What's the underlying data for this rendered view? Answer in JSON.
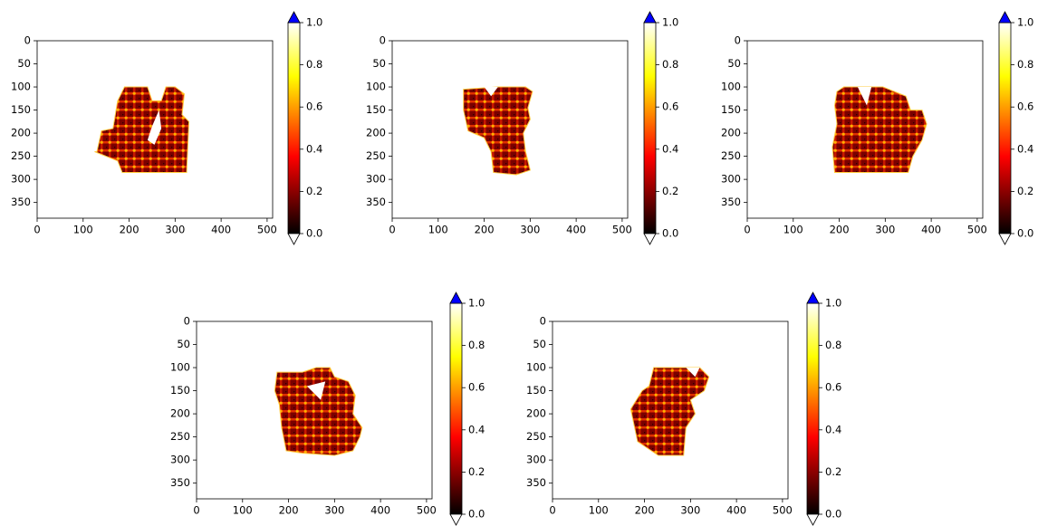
{
  "chart_data": [
    {
      "type": "heatmap",
      "xlim": [
        0,
        512
      ],
      "ylim": [
        384,
        0
      ],
      "xticks": [
        0,
        100,
        200,
        300,
        400,
        500
      ],
      "yticks": [
        0,
        50,
        100,
        150,
        200,
        250,
        300,
        350
      ],
      "colorbar": {
        "lim": [
          0,
          1
        ],
        "ticks": [
          {
            "value": 0,
            "label": "0.0"
          },
          0.2,
          0.4,
          0.6,
          0.8,
          {
            "value": 1,
            "label": "1.0"
          }
        ],
        "colormap": "hot",
        "under_color": "#ffffff",
        "over_color": "#0000ff"
      }
    },
    {
      "type": "heatmap",
      "xlim": [
        0,
        512
      ],
      "ylim": [
        384,
        0
      ],
      "xticks": [
        0,
        100,
        200,
        300,
        400,
        500
      ],
      "yticks": [
        0,
        50,
        100,
        150,
        200,
        250,
        300,
        350
      ],
      "colorbar": {
        "lim": [
          0,
          1
        ],
        "ticks": [
          {
            "value": 0,
            "label": "0.0"
          },
          0.2,
          0.4,
          0.6,
          0.8,
          {
            "value": 1,
            "label": "1.0"
          }
        ],
        "colormap": "hot",
        "under_color": "#ffffff",
        "over_color": "#0000ff"
      }
    },
    {
      "type": "heatmap",
      "xlim": [
        0,
        512
      ],
      "ylim": [
        384,
        0
      ],
      "xticks": [
        0,
        100,
        200,
        300,
        400,
        500
      ],
      "yticks": [
        0,
        50,
        100,
        150,
        200,
        250,
        300,
        350
      ],
      "colorbar": {
        "lim": [
          0,
          1
        ],
        "ticks": [
          {
            "value": 0,
            "label": "0.0"
          },
          0.2,
          0.4,
          0.6,
          0.8,
          {
            "value": 1,
            "label": "1.0"
          }
        ],
        "colormap": "hot",
        "under_color": "#ffffff",
        "over_color": "#0000ff"
      }
    },
    {
      "type": "heatmap",
      "xlim": [
        0,
        512
      ],
      "ylim": [
        384,
        0
      ],
      "xticks": [
        0,
        100,
        200,
        300,
        400,
        500
      ],
      "yticks": [
        0,
        50,
        100,
        150,
        200,
        250,
        300,
        350
      ],
      "colorbar": {
        "lim": [
          0,
          1
        ],
        "ticks": [
          {
            "value": 0,
            "label": "0.0"
          },
          0.2,
          0.4,
          0.6,
          0.8,
          {
            "value": 1,
            "label": "1.0"
          }
        ],
        "colormap": "hot",
        "under_color": "#ffffff",
        "over_color": "#0000ff"
      }
    },
    {
      "type": "heatmap",
      "xlim": [
        0,
        512
      ],
      "ylim": [
        384,
        0
      ],
      "xticks": [
        0,
        100,
        200,
        300,
        400,
        500
      ],
      "yticks": [
        0,
        50,
        100,
        150,
        200,
        250,
        300,
        350
      ],
      "colorbar": {
        "lim": [
          0,
          1
        ],
        "ticks": [
          {
            "value": 0,
            "label": "0.0"
          },
          0.2,
          0.4,
          0.6,
          0.8,
          {
            "value": 1,
            "label": "1.0"
          }
        ],
        "colormap": "hot",
        "under_color": "#ffffff",
        "over_color": "#0000ff"
      }
    }
  ]
}
